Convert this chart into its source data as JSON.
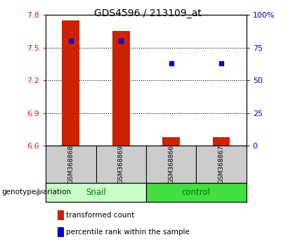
{
  "title": "GDS4596 / 213109_at",
  "samples": [
    "GSM368868",
    "GSM368869",
    "GSM368866",
    "GSM368867"
  ],
  "bar_baseline": 6.6,
  "bar_tops": [
    7.75,
    7.65,
    6.68,
    6.68
  ],
  "percentile_ranks": [
    80,
    80,
    63,
    63
  ],
  "left_ylim": [
    6.6,
    7.8
  ],
  "right_ylim": [
    0,
    100
  ],
  "left_yticks": [
    6.6,
    6.9,
    7.2,
    7.5,
    7.8
  ],
  "right_yticks": [
    0,
    25,
    50,
    75,
    100
  ],
  "right_yticklabels": [
    "0",
    "25",
    "50",
    "75",
    "100%"
  ],
  "bar_color": "#cc2200",
  "dot_color": "#0000cc",
  "bar_width": 0.35,
  "left_tick_color": "#cc2200",
  "right_tick_color": "#0000cc",
  "snail_color": "#c8ffc8",
  "control_color": "#44dd44",
  "sample_box_color": "#cccccc",
  "legend_items": [
    {
      "color": "#cc2200",
      "label": "transformed count"
    },
    {
      "color": "#0000cc",
      "label": "percentile rank within the sample"
    }
  ],
  "genotype_label": "genotype/variation"
}
